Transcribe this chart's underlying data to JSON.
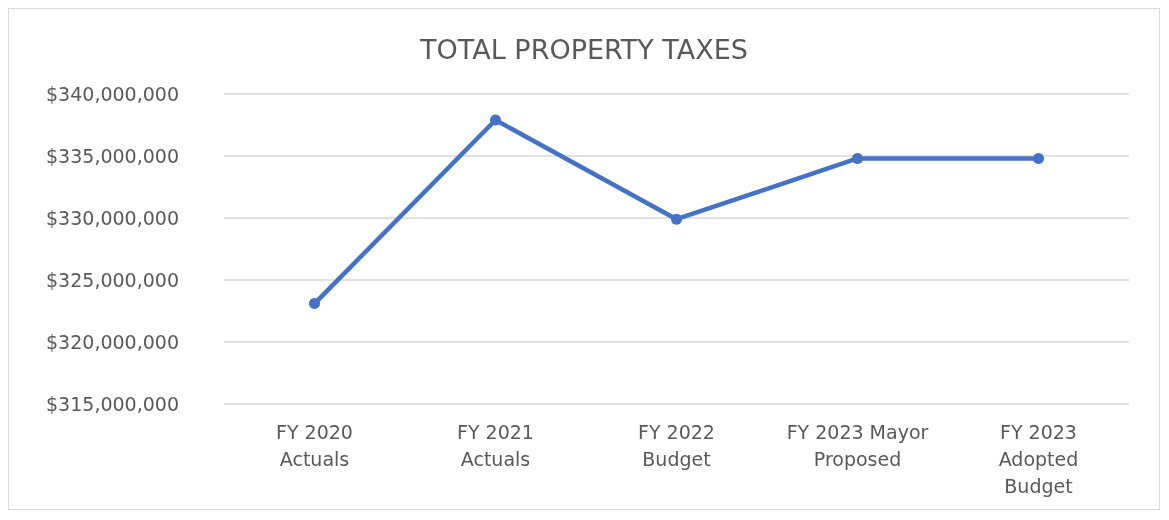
{
  "chart_data": {
    "type": "line",
    "title": "TOTAL PROPERTY TAXES",
    "categories": [
      "FY 2020\nActuals",
      "FY 2021\nActuals",
      "FY 2022\nBudget",
      "FY 2023 Mayor\nProposed",
      "FY 2023\nAdopted\nBudget"
    ],
    "series": [
      {
        "color": "#4472c4",
        "values": [
          323100000,
          337900000,
          329900000,
          334800000,
          334800000
        ]
      }
    ],
    "ylim": [
      315000000,
      340000000
    ],
    "yticks": [
      {
        "value": 315000000,
        "label": "$315,000,000"
      },
      {
        "value": 320000000,
        "label": "$320,000,000"
      },
      {
        "value": 325000000,
        "label": "$325,000,000"
      },
      {
        "value": 330000000,
        "label": "$330,000,000"
      },
      {
        "value": 335000000,
        "label": "$335,000,000"
      },
      {
        "value": 340000000,
        "label": "$340,000,000"
      }
    ],
    "grid": "y",
    "marker": "circle",
    "line_style": "solid"
  }
}
